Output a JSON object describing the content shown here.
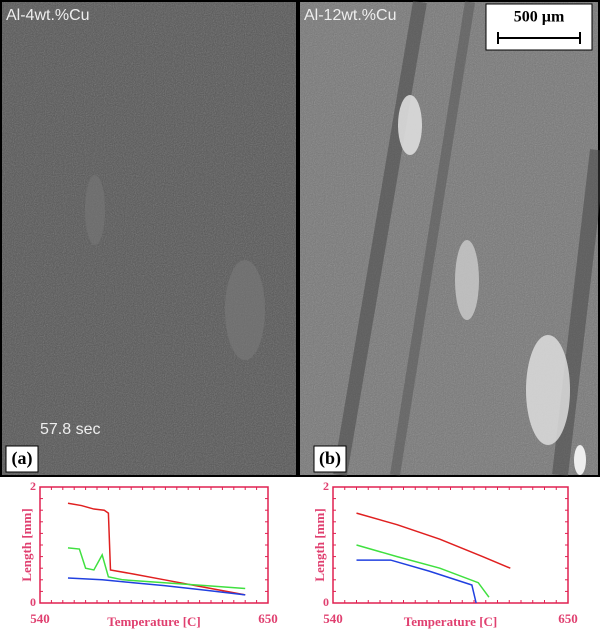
{
  "panels": [
    {
      "label": "(a)",
      "title": "Al-4wt.%Cu",
      "time": "57.8 sec"
    },
    {
      "label": "(b)",
      "title": "Al-12wt.%Cu",
      "scale_bar": "500 µm"
    }
  ],
  "chart_data": [
    {
      "type": "line",
      "xlabel": "Temperature [C]",
      "ylabel": "Length [mm]",
      "xlim": [
        540,
        650
      ],
      "xticks": [
        540,
        650
      ],
      "ylim": [
        0,
        2
      ],
      "yticks": [
        0,
        2
      ],
      "series": [
        {
          "color": "#e02020",
          "x": [
            553.5,
            560,
            566,
            571,
            573,
            574,
            585,
            600,
            615,
            630,
            639
          ],
          "values": [
            1.72,
            1.68,
            1.62,
            1.6,
            1.55,
            0.57,
            0.5,
            0.4,
            0.3,
            0.2,
            0.14
          ]
        },
        {
          "color": "#40e040",
          "x": [
            553.5,
            559,
            562,
            566,
            570,
            573,
            580,
            600,
            620,
            639
          ],
          "values": [
            0.95,
            0.93,
            0.6,
            0.57,
            0.83,
            0.45,
            0.4,
            0.35,
            0.3,
            0.25
          ]
        },
        {
          "color": "#2040e0",
          "x": [
            553.5,
            570,
            585,
            600,
            620,
            639
          ],
          "values": [
            0.43,
            0.4,
            0.35,
            0.3,
            0.22,
            0.14
          ]
        }
      ]
    },
    {
      "type": "line",
      "xlabel": "Temperature [C]",
      "ylabel": "Length [mm]",
      "xlim": [
        540,
        650
      ],
      "xticks": [
        540,
        650
      ],
      "ylim": [
        0,
        2
      ],
      "yticks": [
        0,
        2
      ],
      "series": [
        {
          "color": "#e02020",
          "x": [
            551,
            570,
            590,
            610,
            623
          ],
          "values": [
            1.55,
            1.35,
            1.1,
            0.8,
            0.6
          ]
        },
        {
          "color": "#40e040",
          "x": [
            551,
            570,
            590,
            608,
            613
          ],
          "values": [
            1.0,
            0.8,
            0.6,
            0.35,
            0.1
          ]
        },
        {
          "color": "#2040e0",
          "x": [
            551,
            567,
            585,
            605,
            607
          ],
          "values": [
            0.74,
            0.74,
            0.55,
            0.31,
            0
          ]
        }
      ]
    }
  ]
}
